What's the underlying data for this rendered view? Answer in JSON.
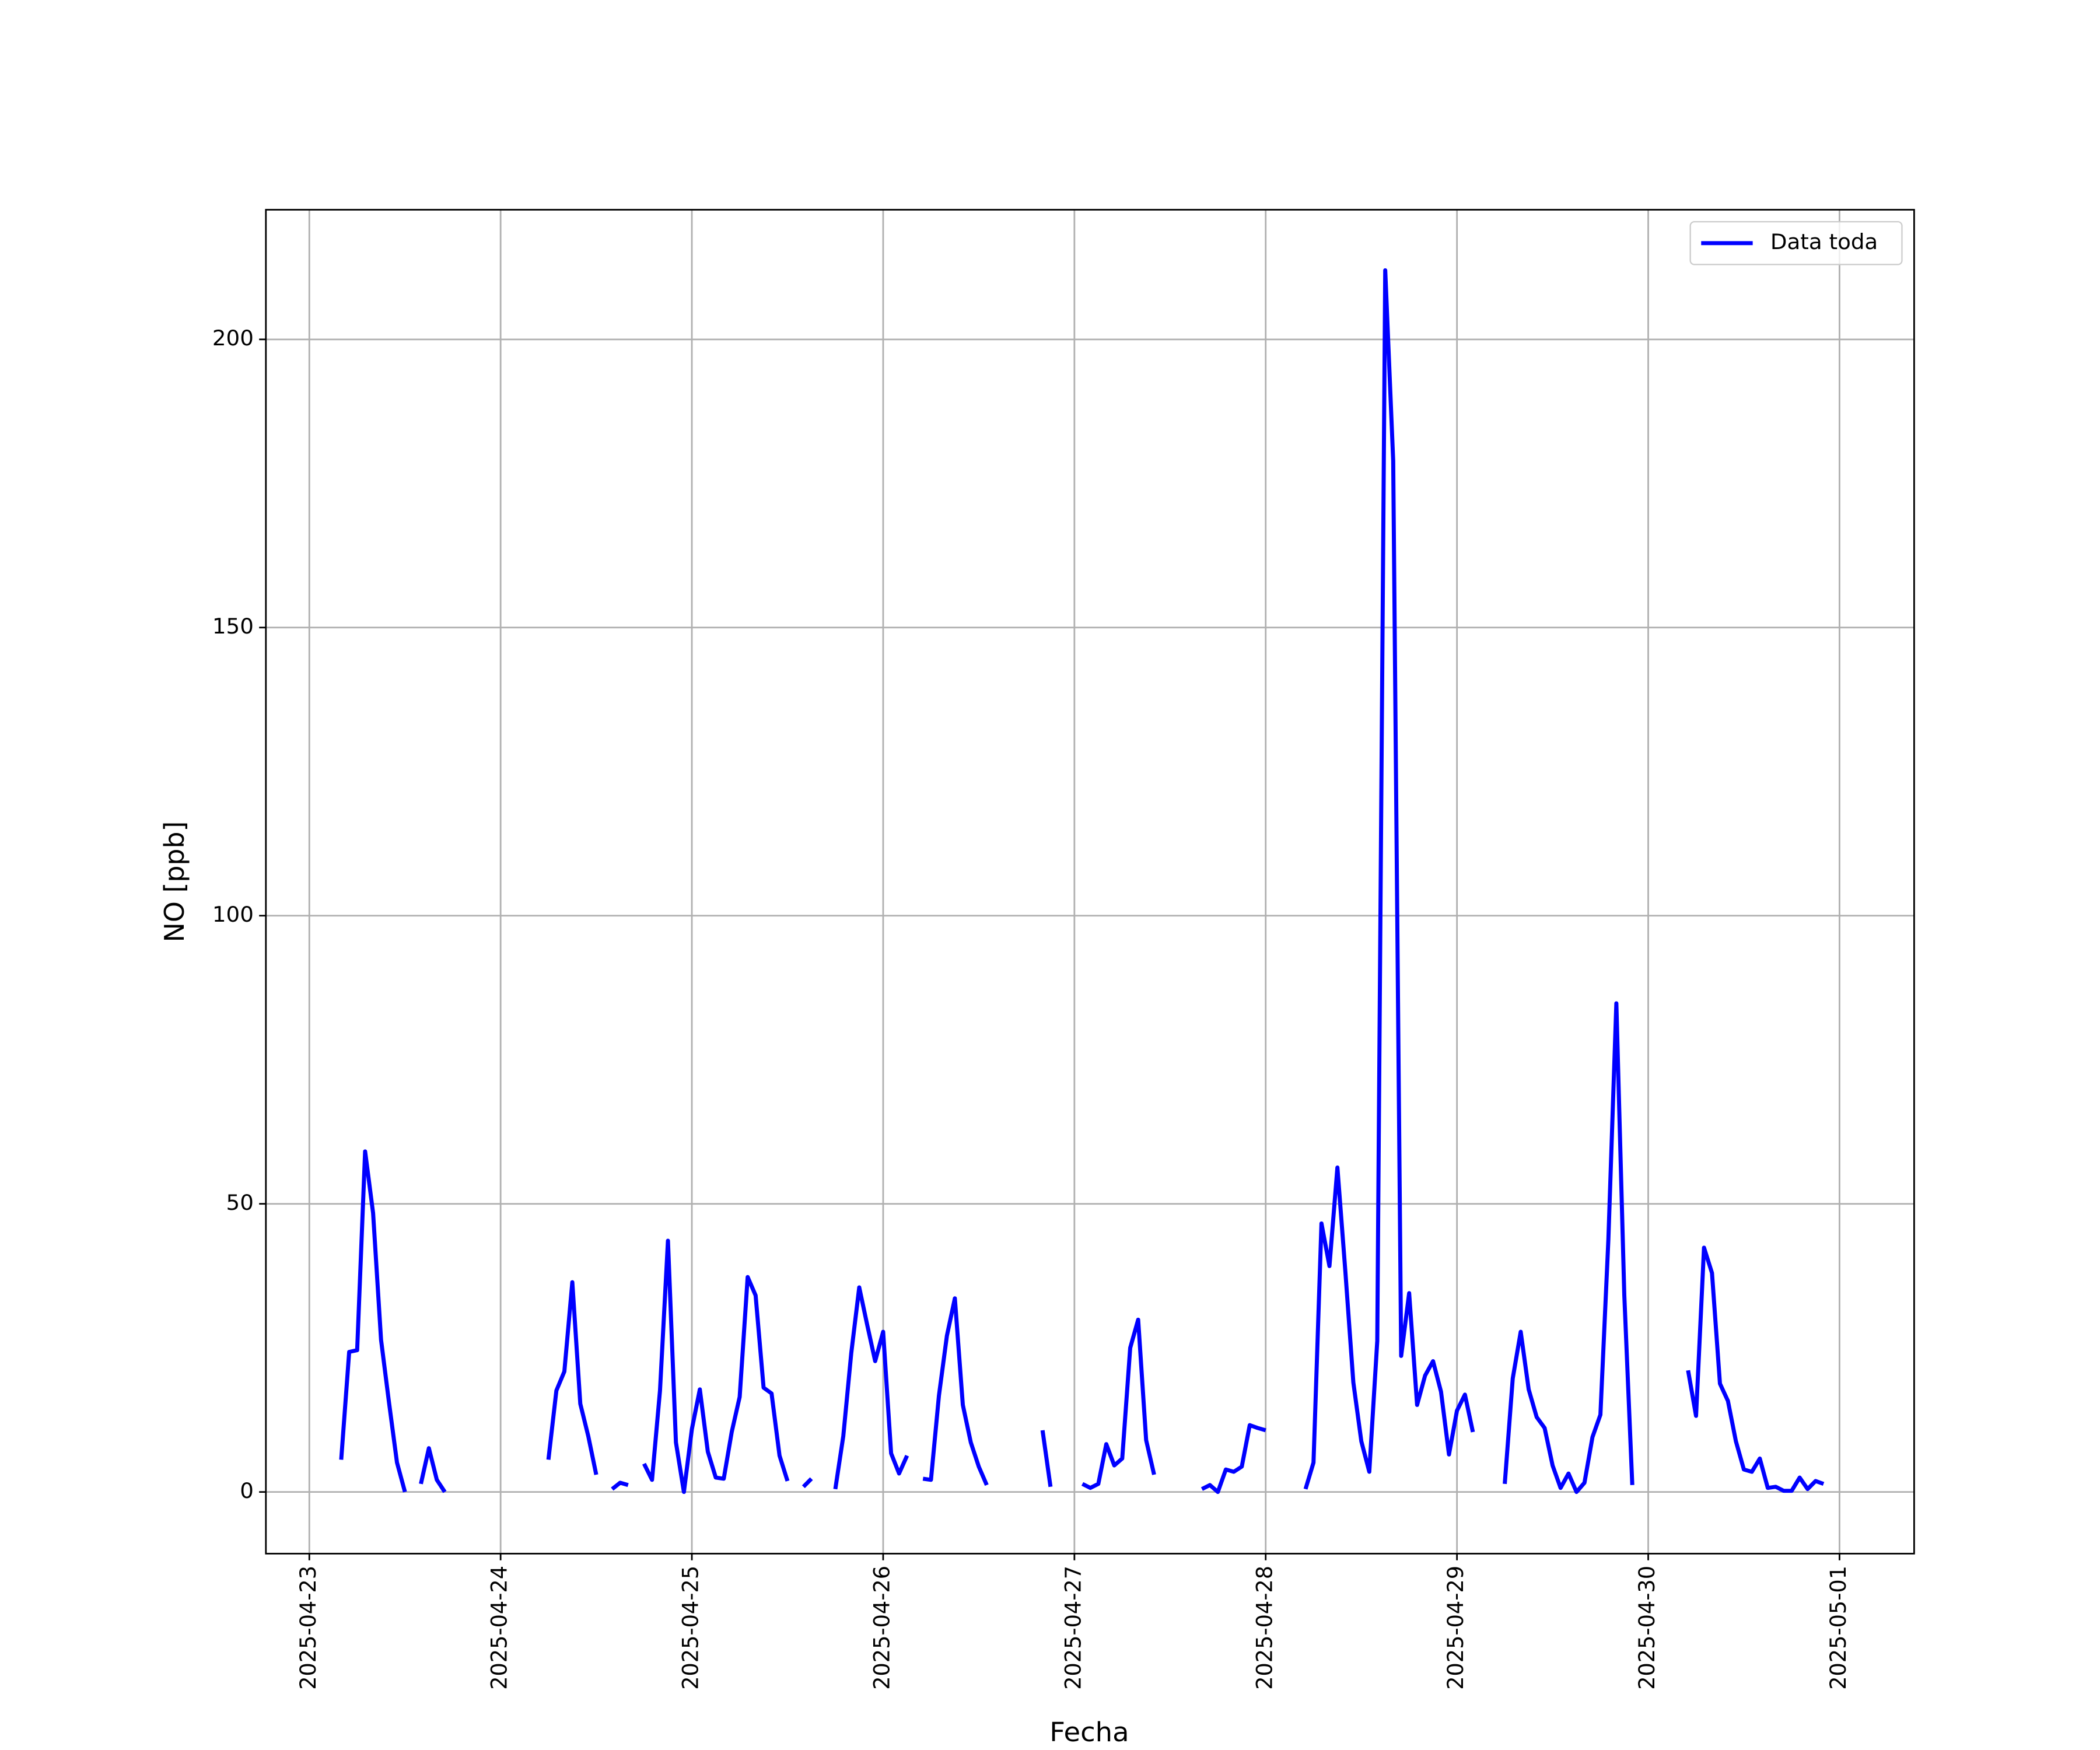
{
  "chart_data": {
    "type": "line",
    "x_label": "Fecha",
    "y_label": "NO [ppb]",
    "x": [
      "2025-04-23 04:00",
      "2025-04-23 05:00",
      "2025-04-23 06:00",
      "2025-04-23 07:00",
      "2025-04-23 08:00",
      "2025-04-23 09:00",
      "2025-04-23 10:00",
      "2025-04-23 11:00",
      "2025-04-23 12:00",
      "2025-04-23 13:00",
      "2025-04-23 14:00",
      "2025-04-23 15:00",
      "2025-04-23 16:00",
      "2025-04-23 17:00",
      "2025-04-23 18:00",
      "2025-04-24 06:00",
      "2025-04-24 07:00",
      "2025-04-24 08:00",
      "2025-04-24 09:00",
      "2025-04-24 10:00",
      "2025-04-24 11:00",
      "2025-04-24 12:00",
      "2025-04-24 13:00",
      "2025-04-24 14:00",
      "2025-04-24 15:00",
      "2025-04-24 16:00",
      "2025-04-24 17:00",
      "2025-04-24 18:00",
      "2025-04-24 19:00",
      "2025-04-24 20:00",
      "2025-04-24 21:00",
      "2025-04-24 22:00",
      "2025-04-24 23:00",
      "2025-04-25 00:00",
      "2025-04-25 01:00",
      "2025-04-25 02:00",
      "2025-04-25 03:00",
      "2025-04-25 04:00",
      "2025-04-25 05:00",
      "2025-04-25 06:00",
      "2025-04-25 07:00",
      "2025-04-25 08:00",
      "2025-04-25 09:00",
      "2025-04-25 10:00",
      "2025-04-25 11:00",
      "2025-04-25 12:00",
      "2025-04-25 13:00",
      "2025-04-25 14:00",
      "2025-04-25 15:00",
      "2025-04-25 16:00",
      "2025-04-25 18:00",
      "2025-04-25 19:00",
      "2025-04-25 20:00",
      "2025-04-25 21:00",
      "2025-04-25 22:00",
      "2025-04-25 23:00",
      "2025-04-26 00:00",
      "2025-04-26 01:00",
      "2025-04-26 02:00",
      "2025-04-26 03:00",
      "2025-04-26 04:00",
      "2025-04-26 05:00",
      "2025-04-26 06:00",
      "2025-04-26 07:00",
      "2025-04-26 08:00",
      "2025-04-26 09:00",
      "2025-04-26 10:00",
      "2025-04-26 11:00",
      "2025-04-26 12:00",
      "2025-04-26 13:00",
      "2025-04-26 14:00",
      "2025-04-26 20:00",
      "2025-04-26 21:00",
      "2025-04-26 22:00",
      "2025-04-27 01:00",
      "2025-04-27 02:00",
      "2025-04-27 03:00",
      "2025-04-27 04:00",
      "2025-04-27 05:00",
      "2025-04-27 06:00",
      "2025-04-27 07:00",
      "2025-04-27 08:00",
      "2025-04-27 09:00",
      "2025-04-27 10:00",
      "2025-04-27 11:00",
      "2025-04-27 16:00",
      "2025-04-27 17:00",
      "2025-04-27 18:00",
      "2025-04-27 19:00",
      "2025-04-27 20:00",
      "2025-04-27 21:00",
      "2025-04-27 22:00",
      "2025-04-27 23:00",
      "2025-04-28 00:00",
      "2025-04-28 01:00",
      "2025-04-28 05:00",
      "2025-04-28 06:00",
      "2025-04-28 07:00",
      "2025-04-28 08:00",
      "2025-04-28 09:00",
      "2025-04-28 10:00",
      "2025-04-28 11:00",
      "2025-04-28 12:00",
      "2025-04-28 13:00",
      "2025-04-28 14:00",
      "2025-04-28 15:00",
      "2025-04-28 16:00",
      "2025-04-28 17:00",
      "2025-04-28 18:00",
      "2025-04-28 19:00",
      "2025-04-28 20:00",
      "2025-04-28 21:00",
      "2025-04-28 22:00",
      "2025-04-28 23:00",
      "2025-04-29 00:00",
      "2025-04-29 01:00",
      "2025-04-29 02:00",
      "2025-04-29 03:00",
      "2025-04-29 06:00",
      "2025-04-29 07:00",
      "2025-04-29 08:00",
      "2025-04-29 09:00",
      "2025-04-29 10:00",
      "2025-04-29 11:00",
      "2025-04-29 12:00",
      "2025-04-29 13:00",
      "2025-04-29 14:00",
      "2025-04-29 15:00",
      "2025-04-29 16:00",
      "2025-04-29 17:00",
      "2025-04-29 18:00",
      "2025-04-29 19:00",
      "2025-04-29 20:00",
      "2025-04-29 21:00",
      "2025-04-29 22:00",
      "2025-04-29 23:00",
      "2025-04-30 05:00",
      "2025-04-30 06:00",
      "2025-04-30 07:00",
      "2025-04-30 08:00",
      "2025-04-30 09:00",
      "2025-04-30 10:00",
      "2025-04-30 11:00",
      "2025-04-30 12:00",
      "2025-04-30 13:00",
      "2025-04-30 14:00",
      "2025-04-30 15:00",
      "2025-04-30 16:00",
      "2025-04-30 17:00",
      "2025-04-30 18:00",
      "2025-04-30 19:00",
      "2025-04-30 20:00",
      "2025-04-30 21:00",
      "2025-04-30 22:00"
    ],
    "series": [
      {
        "name": "Data toda",
        "color": "#0000ff",
        "values": [
          5.6,
          24.3,
          24.6,
          59.1,
          48.4,
          26.4,
          15.5,
          5.1,
          0,
          null,
          1.4,
          7.6,
          2.1,
          0,
          null,
          5.6,
          17.6,
          20.9,
          36.4,
          15.3,
          9.7,
          3.0,
          null,
          0.5,
          1.6,
          1.2,
          null,
          4.9,
          2.1,
          17.6,
          43.6,
          8.6,
          0,
          10.9,
          17.8,
          7.0,
          2.5,
          2.3,
          10.4,
          16.5,
          37.3,
          34.1,
          18.1,
          17.1,
          6.3,
          1.9,
          null,
          0.9,
          2.3,
          null,
          0.5,
          9.7,
          24.1,
          35.5,
          29.0,
          22.7,
          27.8,
          6.7,
          3.2,
          6.3,
          null,
          2.3,
          2.1,
          16.7,
          27.1,
          33.6,
          15.1,
          8.6,
          4.4,
          1.2,
          null,
          10.7,
          0.9,
          null,
          1.4,
          0.7,
          1.4,
          8.3,
          4.6,
          5.8,
          25.0,
          29.9,
          9.0,
          3.0,
          null,
          0.5,
          1.2,
          0,
          3.9,
          3.5,
          4.4,
          11.6,
          11.1,
          10.7,
          null,
          0.5,
          5.1,
          46.6,
          39.2,
          56.3,
          38.2,
          19.0,
          8.8,
          3.5,
          26.2,
          212.0,
          178.9,
          23.6,
          34.5,
          15.1,
          20.2,
          22.7,
          17.4,
          6.5,
          14.1,
          16.9,
          10.4,
          null,
          1.4,
          19.7,
          27.8,
          17.8,
          13.0,
          11.1,
          4.6,
          0.7,
          3.2,
          0,
          1.6,
          9.5,
          13.4,
          43.8,
          84.8,
          34.1,
          1.2,
          null,
          21.1,
          13.2,
          42.4,
          38.0,
          18.8,
          15.8,
          8.8,
          3.9,
          3.5,
          5.8,
          0.7,
          0.9,
          0.2,
          0.2,
          2.5,
          0.5,
          1.9,
          1.4
        ]
      }
    ],
    "xlim": [
      "2025-04-22 18:33",
      "2025-05-01 09:22"
    ],
    "xticks": [
      "2025-04-23",
      "2025-04-24",
      "2025-04-25",
      "2025-04-26",
      "2025-04-27",
      "2025-04-28",
      "2025-04-29",
      "2025-04-30",
      "2025-05-01"
    ],
    "ylim": [
      -10.7,
      222.5
    ],
    "yticks": [
      0,
      50,
      100,
      150,
      200
    ],
    "grid": true,
    "legend": "upper right"
  }
}
